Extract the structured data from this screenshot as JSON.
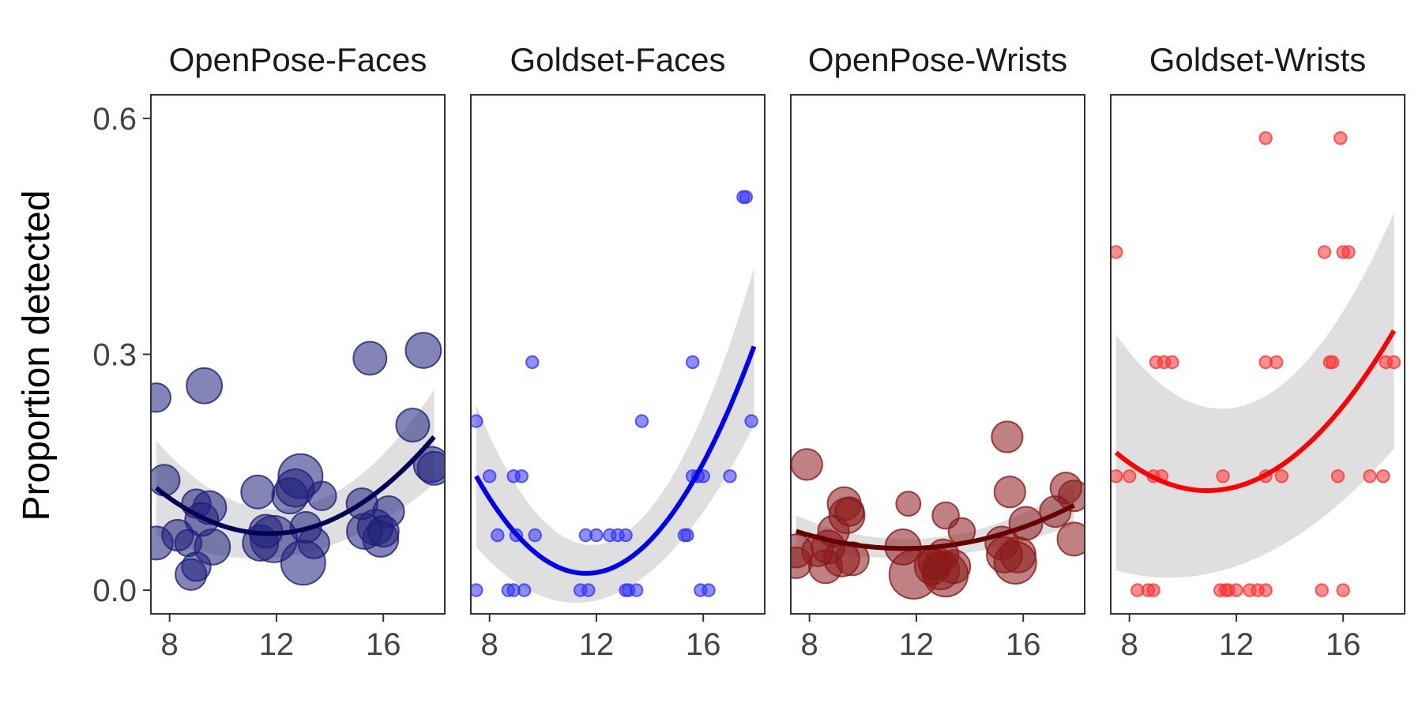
{
  "chart_data": {
    "type": "scatter",
    "ylabel": "Proportion detected",
    "xlabel": "",
    "xlim": [
      7.3,
      18.3
    ],
    "ylim": [
      -0.03,
      0.63
    ],
    "x_ticks": [
      8,
      12,
      16
    ],
    "x_tick_labels": [
      "8",
      "12",
      "16"
    ],
    "y_ticks": [
      0,
      0.3,
      0.6
    ],
    "y_tick_labels": [
      "0.0",
      "0.3",
      "0.6"
    ],
    "panels": [
      {
        "title": "OpenPose-Faces",
        "color": "#1f1f7a",
        "line_color": "#000055",
        "curve": [
          0.13,
          0.075,
          0.195
        ],
        "band": [
          0.06,
          0.03,
          0.06
        ],
        "points": [
          [
            7.5,
            0.245,
            1.3
          ],
          [
            7.5,
            0.06,
            1.5
          ],
          [
            7.8,
            0.14,
            1.4
          ],
          [
            8.3,
            0.07,
            1.4
          ],
          [
            8.7,
            0.06,
            1.2
          ],
          [
            8.8,
            0.02,
            1.4
          ],
          [
            9.0,
            0.03,
            1.3
          ],
          [
            9.0,
            0.11,
            1.3
          ],
          [
            9.2,
            0.09,
            1.5
          ],
          [
            9.3,
            0.26,
            1.6
          ],
          [
            9.5,
            0.105,
            1.5
          ],
          [
            9.6,
            0.055,
            1.6
          ],
          [
            11.3,
            0.125,
            1.5
          ],
          [
            11.4,
            0.06,
            1.6
          ],
          [
            11.6,
            0.075,
            1.5
          ],
          [
            11.9,
            0.065,
            2.1
          ],
          [
            12.5,
            0.12,
            1.6
          ],
          [
            12.7,
            0.13,
            1.7
          ],
          [
            12.9,
            0.145,
            2.0
          ],
          [
            13.0,
            0.035,
            2.0
          ],
          [
            13.1,
            0.08,
            1.4
          ],
          [
            13.4,
            0.06,
            1.4
          ],
          [
            13.7,
            0.12,
            1.3
          ],
          [
            15.2,
            0.11,
            1.4
          ],
          [
            15.3,
            0.075,
            1.6
          ],
          [
            15.5,
            0.295,
            1.5
          ],
          [
            15.7,
            0.08,
            1.6
          ],
          [
            15.9,
            0.065,
            1.6
          ],
          [
            16.0,
            0.075,
            1.4
          ],
          [
            16.2,
            0.1,
            1.4
          ],
          [
            17.1,
            0.21,
            1.5
          ],
          [
            17.5,
            0.305,
            1.6
          ],
          [
            17.8,
            0.16,
            1.6
          ],
          [
            17.9,
            0.155,
            1.5
          ]
        ]
      },
      {
        "title": "Goldset-Faces",
        "color": "#3333ff",
        "line_color": "#0000ee",
        "curve": [
          0.145,
          0.03,
          0.31
        ],
        "band": [
          0.09,
          0.035,
          0.1
        ],
        "points": [
          [
            7.5,
            0.215,
            0.55
          ],
          [
            7.5,
            0.0,
            0.55
          ],
          [
            8.0,
            0.145,
            0.55
          ],
          [
            8.3,
            0.07,
            0.55
          ],
          [
            8.7,
            0.0,
            0.55
          ],
          [
            8.9,
            0.0,
            0.55
          ],
          [
            8.9,
            0.145,
            0.55
          ],
          [
            9.0,
            0.07,
            0.55
          ],
          [
            9.2,
            0.145,
            0.55
          ],
          [
            9.3,
            0.0,
            0.55
          ],
          [
            9.6,
            0.29,
            0.55
          ],
          [
            9.7,
            0.07,
            0.55
          ],
          [
            11.4,
            0.0,
            0.55
          ],
          [
            11.6,
            0.07,
            0.55
          ],
          [
            11.7,
            0.0,
            0.55
          ],
          [
            12.0,
            0.07,
            0.55
          ],
          [
            12.5,
            0.07,
            0.55
          ],
          [
            12.8,
            0.07,
            0.55
          ],
          [
            13.1,
            0.0,
            0.55
          ],
          [
            13.1,
            0.07,
            0.55
          ],
          [
            13.2,
            0.0,
            0.55
          ],
          [
            13.5,
            0.0,
            0.55
          ],
          [
            13.7,
            0.215,
            0.55
          ],
          [
            15.3,
            0.07,
            0.55
          ],
          [
            15.4,
            0.07,
            0.55
          ],
          [
            15.6,
            0.29,
            0.55
          ],
          [
            15.6,
            0.145,
            0.55
          ],
          [
            15.8,
            0.145,
            0.55
          ],
          [
            15.9,
            0.0,
            0.55
          ],
          [
            16.0,
            0.145,
            0.55
          ],
          [
            16.2,
            0.0,
            0.55
          ],
          [
            17.0,
            0.145,
            0.55
          ],
          [
            17.5,
            0.5,
            0.55
          ],
          [
            17.6,
            0.5,
            0.55
          ],
          [
            17.8,
            0.215,
            0.55
          ]
        ]
      },
      {
        "title": "OpenPose-Wrists",
        "color": "#8b1a1a",
        "line_color": "#660000",
        "curve": [
          0.075,
          0.055,
          0.108
        ],
        "band": [
          0.02,
          0.012,
          0.025
        ],
        "points": [
          [
            7.5,
            0.05,
            1.5
          ],
          [
            7.5,
            0.035,
            1.4
          ],
          [
            7.9,
            0.16,
            1.4
          ],
          [
            8.3,
            0.05,
            1.4
          ],
          [
            8.6,
            0.03,
            1.5
          ],
          [
            8.7,
            0.055,
            1.5
          ],
          [
            8.9,
            0.075,
            1.4
          ],
          [
            9.2,
            0.04,
            1.6
          ],
          [
            9.3,
            0.11,
            1.5
          ],
          [
            9.4,
            0.095,
            1.6
          ],
          [
            9.5,
            0.1,
            1.3
          ],
          [
            9.6,
            0.04,
            1.5
          ],
          [
            11.5,
            0.055,
            1.6
          ],
          [
            11.7,
            0.11,
            1.1
          ],
          [
            11.9,
            0.02,
            2.2
          ],
          [
            12.6,
            0.03,
            1.6
          ],
          [
            12.7,
            0.035,
            1.5
          ],
          [
            12.9,
            0.025,
            1.7
          ],
          [
            13.0,
            0.045,
            1.4
          ],
          [
            13.1,
            0.02,
            2.0
          ],
          [
            13.1,
            0.095,
            1.2
          ],
          [
            13.4,
            0.03,
            1.5
          ],
          [
            13.7,
            0.075,
            1.2
          ],
          [
            15.2,
            0.06,
            1.5
          ],
          [
            15.3,
            0.045,
            1.6
          ],
          [
            15.4,
            0.195,
            1.4
          ],
          [
            15.5,
            0.125,
            1.4
          ],
          [
            15.7,
            0.035,
            1.9
          ],
          [
            15.8,
            0.045,
            1.6
          ],
          [
            16.1,
            0.085,
            1.5
          ],
          [
            17.2,
            0.1,
            1.4
          ],
          [
            17.6,
            0.13,
            1.4
          ],
          [
            17.9,
            0.12,
            1.4
          ],
          [
            17.9,
            0.065,
            1.5
          ]
        ]
      },
      {
        "title": "Goldset-Wrists",
        "color": "#ff3333",
        "line_color": "#ff0000",
        "curve": [
          0.175,
          0.14,
          0.33
        ],
        "band": [
          0.15,
          0.1,
          0.15
        ],
        "points": [
          [
            7.5,
            0.43,
            0.55
          ],
          [
            7.5,
            0.145,
            0.55
          ],
          [
            8.0,
            0.145,
            0.55
          ],
          [
            8.3,
            0.0,
            0.55
          ],
          [
            8.7,
            0.0,
            0.55
          ],
          [
            8.9,
            0.0,
            0.55
          ],
          [
            8.9,
            0.145,
            0.55
          ],
          [
            9.0,
            0.29,
            0.55
          ],
          [
            9.2,
            0.145,
            0.55
          ],
          [
            9.3,
            0.29,
            0.55
          ],
          [
            9.6,
            0.29,
            0.55
          ],
          [
            11.4,
            0.0,
            0.55
          ],
          [
            11.5,
            0.145,
            0.55
          ],
          [
            11.6,
            0.0,
            0.55
          ],
          [
            11.7,
            0.0,
            0.55
          ],
          [
            12.0,
            0.0,
            0.55
          ],
          [
            12.5,
            0.0,
            0.55
          ],
          [
            12.8,
            0.0,
            0.55
          ],
          [
            13.1,
            0.0,
            0.55
          ],
          [
            13.1,
            0.145,
            0.55
          ],
          [
            13.1,
            0.29,
            0.55
          ],
          [
            13.1,
            0.575,
            0.55
          ],
          [
            13.5,
            0.29,
            0.55
          ],
          [
            13.7,
            0.145,
            0.55
          ],
          [
            15.2,
            0.0,
            0.55
          ],
          [
            15.3,
            0.43,
            0.55
          ],
          [
            15.5,
            0.29,
            0.55
          ],
          [
            15.6,
            0.29,
            0.55
          ],
          [
            15.8,
            0.145,
            0.55
          ],
          [
            15.9,
            0.575,
            0.55
          ],
          [
            16.0,
            0.0,
            0.55
          ],
          [
            16.0,
            0.43,
            0.55
          ],
          [
            16.2,
            0.43,
            0.55
          ],
          [
            17.0,
            0.145,
            0.55
          ],
          [
            17.5,
            0.145,
            0.55
          ],
          [
            17.6,
            0.29,
            0.55
          ],
          [
            17.9,
            0.29,
            0.55
          ]
        ]
      }
    ]
  }
}
